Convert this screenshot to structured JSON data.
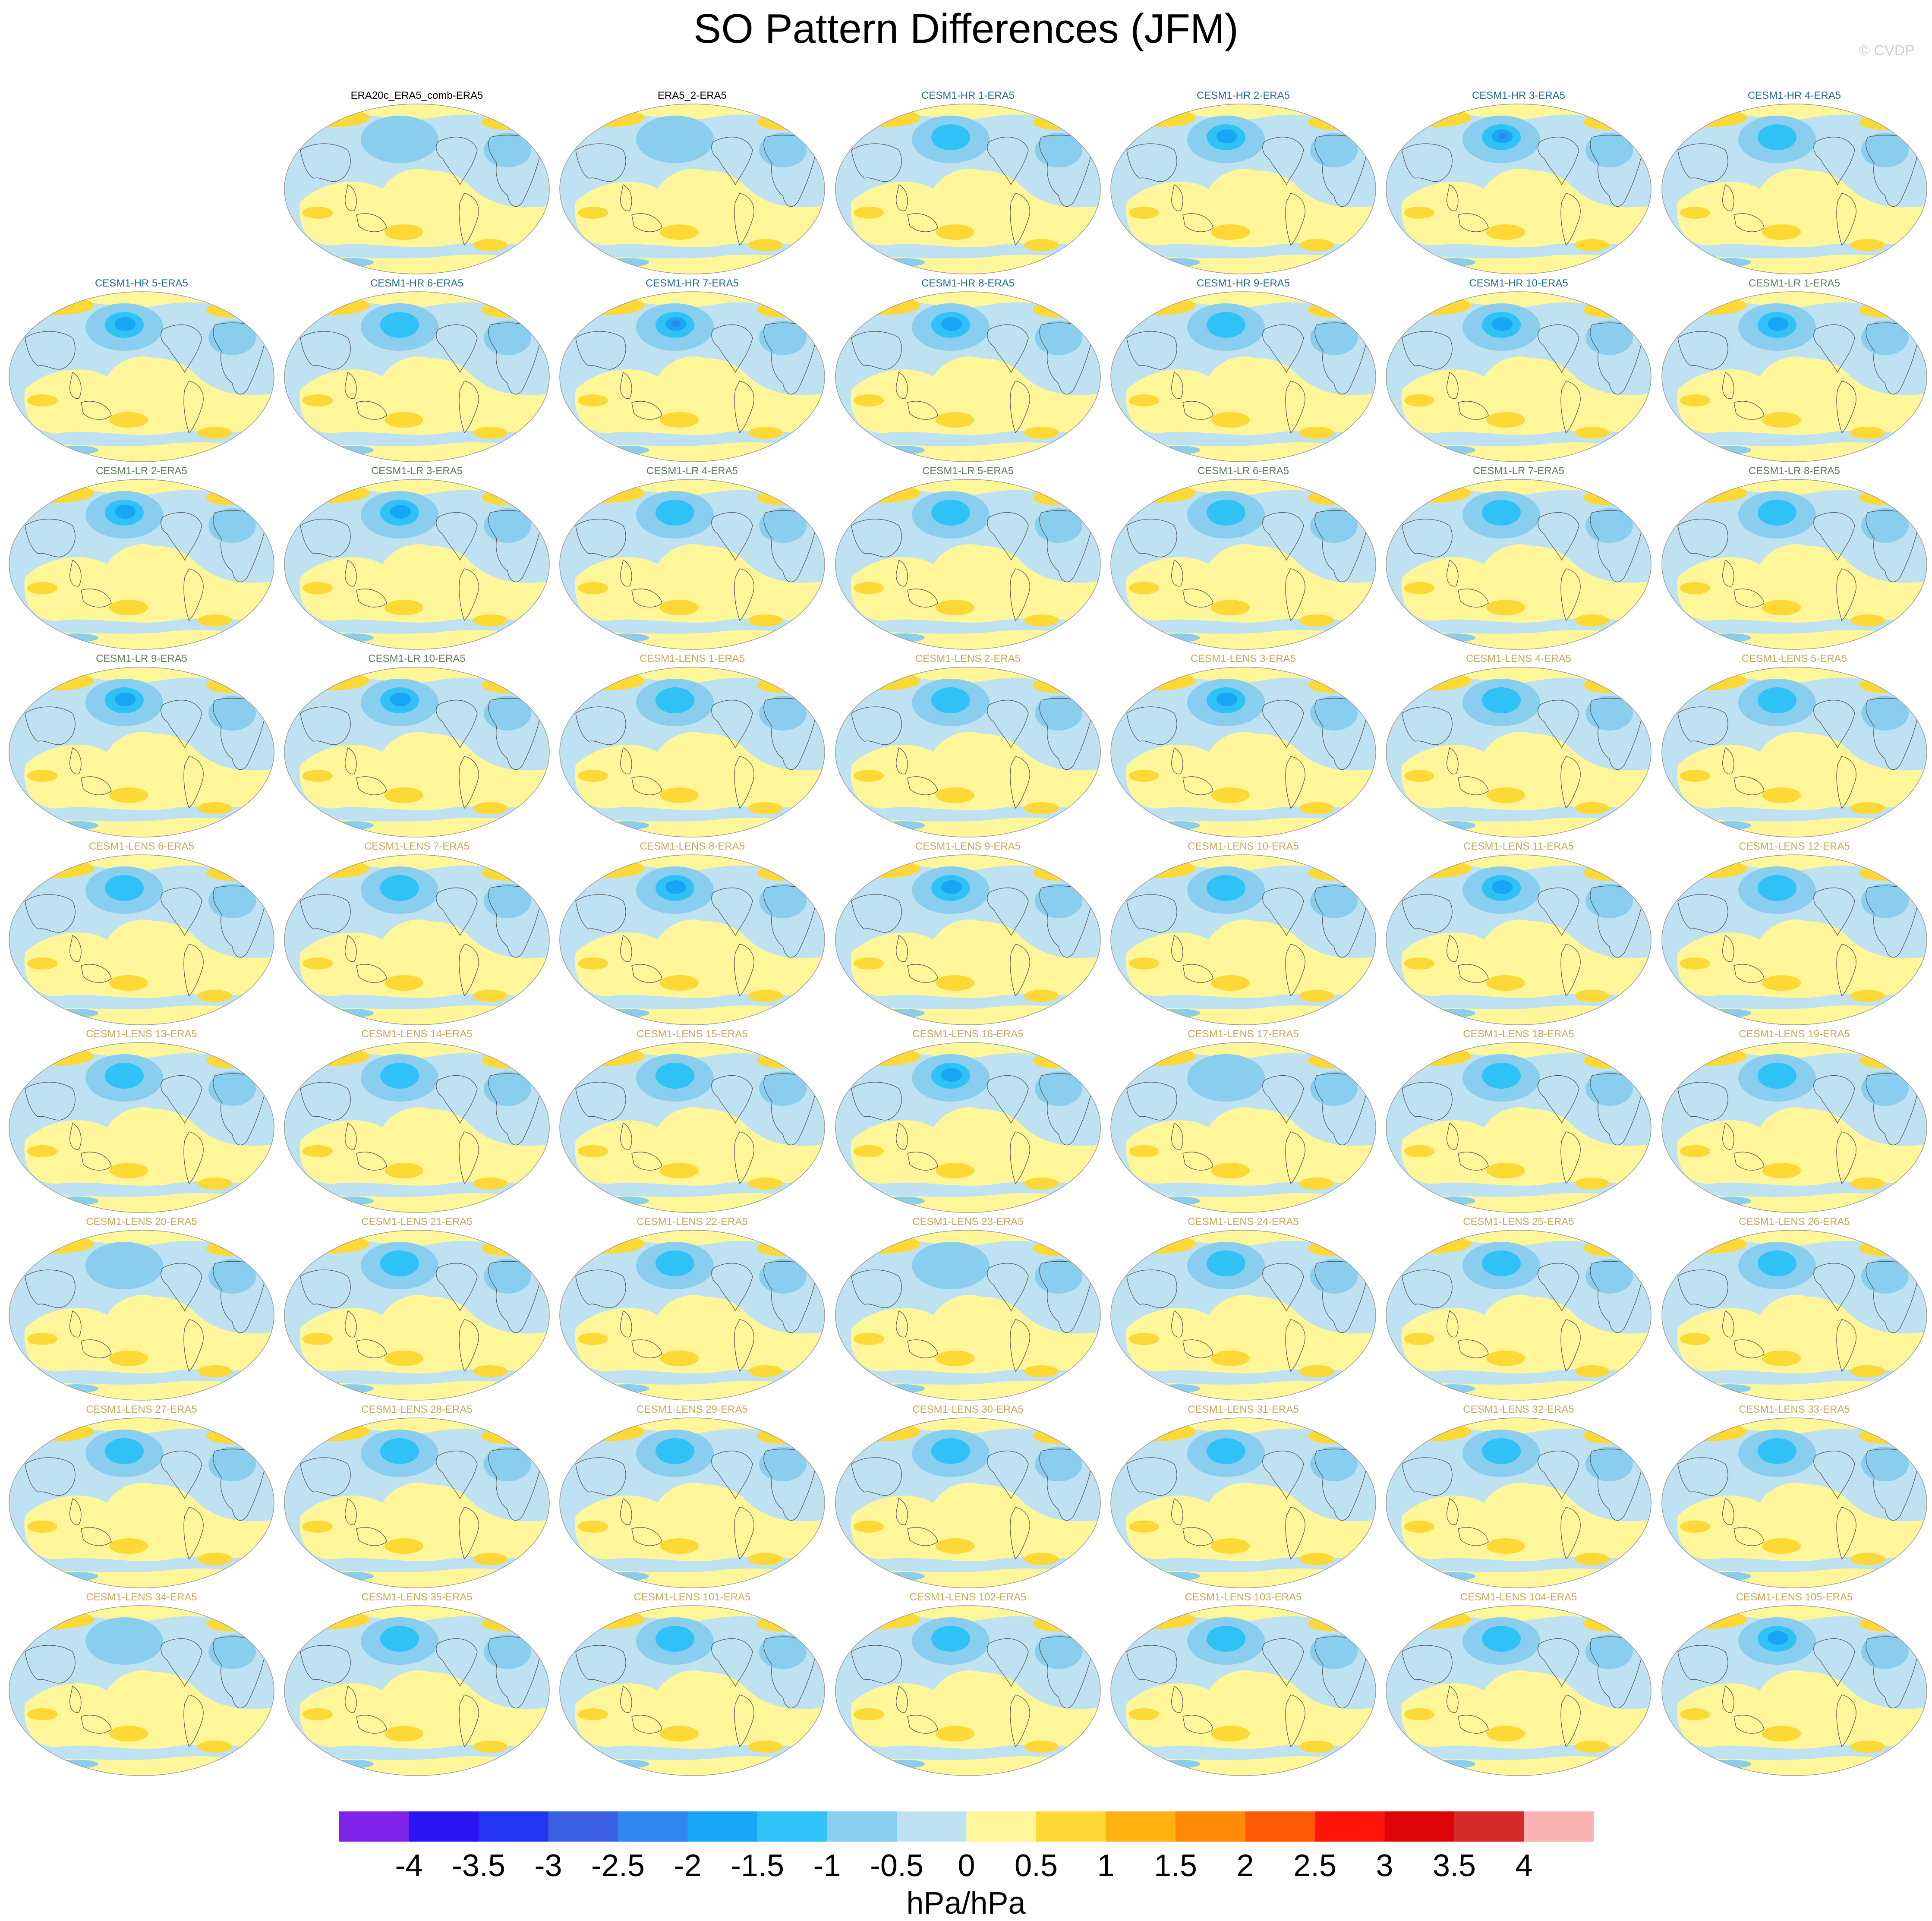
{
  "title": "SO Pattern Differences (JFM)",
  "credit": "© CVDP",
  "title_colors": {
    "reference": "#000000",
    "CESM1-HR": "#1f6f8b",
    "CESM1-LR": "#5f7f5f",
    "CESM1-LENS": "#c9a85a"
  },
  "map_colors": {
    "ocean_edge": "#9a9a9a",
    "coast": "#555555"
  },
  "panels": [
    {
      "label": "ERA20c_ERA5_comb-ERA5",
      "group": "reference",
      "row": 0,
      "col": 1,
      "blue_strength": 0.2,
      "red_strength": 0.1
    },
    {
      "label": "ERA5_2-ERA5",
      "group": "reference",
      "row": 0,
      "col": 2,
      "blue_strength": 0.2,
      "red_strength": 0.1
    },
    {
      "label": "CESM1-HR 1-ERA5",
      "group": "CESM1-HR",
      "row": 0,
      "col": 3,
      "blue_strength": 0.5,
      "red_strength": 0.5
    },
    {
      "label": "CESM1-HR 2-ERA5",
      "group": "CESM1-HR",
      "row": 0,
      "col": 4,
      "blue_strength": 0.7,
      "red_strength": 0.5
    },
    {
      "label": "CESM1-HR 3-ERA5",
      "group": "CESM1-HR",
      "row": 0,
      "col": 5,
      "blue_strength": 0.9,
      "red_strength": 0.6
    },
    {
      "label": "CESM1-HR 4-ERA5",
      "group": "CESM1-HR",
      "row": 0,
      "col": 6,
      "blue_strength": 0.6,
      "red_strength": 0.7
    },
    {
      "label": "CESM1-HR 5-ERA5",
      "group": "CESM1-HR",
      "row": 1,
      "col": 0,
      "blue_strength": 0.7,
      "red_strength": 0.5
    },
    {
      "label": "CESM1-HR 6-ERA5",
      "group": "CESM1-HR",
      "row": 1,
      "col": 1,
      "blue_strength": 0.6,
      "red_strength": 0.5
    },
    {
      "label": "CESM1-HR 7-ERA5",
      "group": "CESM1-HR",
      "row": 1,
      "col": 2,
      "blue_strength": 0.9,
      "red_strength": 0.7
    },
    {
      "label": "CESM1-HR 8-ERA5",
      "group": "CESM1-HR",
      "row": 1,
      "col": 3,
      "blue_strength": 0.7,
      "red_strength": 0.8
    },
    {
      "label": "CESM1-HR 9-ERA5",
      "group": "CESM1-HR",
      "row": 1,
      "col": 4,
      "blue_strength": 0.6,
      "red_strength": 0.3
    },
    {
      "label": "CESM1-HR 10-ERA5",
      "group": "CESM1-HR",
      "row": 1,
      "col": 5,
      "blue_strength": 0.7,
      "red_strength": 0.5
    },
    {
      "label": "CESM1-LR 1-ERA5",
      "group": "CESM1-LR",
      "row": 1,
      "col": 6,
      "blue_strength": 0.8,
      "red_strength": 0.6
    },
    {
      "label": "CESM1-LR 2-ERA5",
      "group": "CESM1-LR",
      "row": 2,
      "col": 0,
      "blue_strength": 0.7,
      "red_strength": 0.6
    },
    {
      "label": "CESM1-LR 3-ERA5",
      "group": "CESM1-LR",
      "row": 2,
      "col": 1,
      "blue_strength": 0.7,
      "red_strength": 0.6
    },
    {
      "label": "CESM1-LR 4-ERA5",
      "group": "CESM1-LR",
      "row": 2,
      "col": 2,
      "blue_strength": 0.6,
      "red_strength": 0.5
    },
    {
      "label": "CESM1-LR 5-ERA5",
      "group": "CESM1-LR",
      "row": 2,
      "col": 3,
      "blue_strength": 0.6,
      "red_strength": 0.5
    },
    {
      "label": "CESM1-LR 6-ERA5",
      "group": "CESM1-LR",
      "row": 2,
      "col": 4,
      "blue_strength": 0.5,
      "red_strength": 0.6
    },
    {
      "label": "CESM1-LR 7-ERA5",
      "group": "CESM1-LR",
      "row": 2,
      "col": 5,
      "blue_strength": 0.6,
      "red_strength": 0.6
    },
    {
      "label": "CESM1-LR 8-ERA5",
      "group": "CESM1-LR",
      "row": 2,
      "col": 6,
      "blue_strength": 0.6,
      "red_strength": 0.6
    },
    {
      "label": "CESM1-LR 9-ERA5",
      "group": "CESM1-LR",
      "row": 3,
      "col": 0,
      "blue_strength": 0.8,
      "red_strength": 0.7
    },
    {
      "label": "CESM1-LR 10-ERA5",
      "group": "CESM1-LR",
      "row": 3,
      "col": 1,
      "blue_strength": 0.8,
      "red_strength": 0.6
    },
    {
      "label": "CESM1-LENS 1-ERA5",
      "group": "CESM1-LENS",
      "row": 3,
      "col": 2,
      "blue_strength": 0.6,
      "red_strength": 0.5
    },
    {
      "label": "CESM1-LENS 2-ERA5",
      "group": "CESM1-LENS",
      "row": 3,
      "col": 3,
      "blue_strength": 0.5,
      "red_strength": 0.5
    },
    {
      "label": "CESM1-LENS 3-ERA5",
      "group": "CESM1-LENS",
      "row": 3,
      "col": 4,
      "blue_strength": 0.7,
      "red_strength": 0.6
    },
    {
      "label": "CESM1-LENS 4-ERA5",
      "group": "CESM1-LENS",
      "row": 3,
      "col": 5,
      "blue_strength": 0.6,
      "red_strength": 0.5
    },
    {
      "label": "CESM1-LENS 5-ERA5",
      "group": "CESM1-LENS",
      "row": 3,
      "col": 6,
      "blue_strength": 0.5,
      "red_strength": 0.4
    },
    {
      "label": "CESM1-LENS 6-ERA5",
      "group": "CESM1-LENS",
      "row": 4,
      "col": 0,
      "blue_strength": 0.6,
      "red_strength": 0.6
    },
    {
      "label": "CESM1-LENS 7-ERA5",
      "group": "CESM1-LENS",
      "row": 4,
      "col": 1,
      "blue_strength": 0.5,
      "red_strength": 0.5
    },
    {
      "label": "CESM1-LENS 8-ERA5",
      "group": "CESM1-LENS",
      "row": 4,
      "col": 2,
      "blue_strength": 0.7,
      "red_strength": 0.7
    },
    {
      "label": "CESM1-LENS 9-ERA5",
      "group": "CESM1-LENS",
      "row": 4,
      "col": 3,
      "blue_strength": 0.8,
      "red_strength": 0.7
    },
    {
      "label": "CESM1-LENS 10-ERA5",
      "group": "CESM1-LENS",
      "row": 4,
      "col": 4,
      "blue_strength": 0.5,
      "red_strength": 0.5
    },
    {
      "label": "CESM1-LENS 11-ERA5",
      "group": "CESM1-LENS",
      "row": 4,
      "col": 5,
      "blue_strength": 0.7,
      "red_strength": 0.6
    },
    {
      "label": "CESM1-LENS 12-ERA5",
      "group": "CESM1-LENS",
      "row": 4,
      "col": 6,
      "blue_strength": 0.6,
      "red_strength": 0.6
    },
    {
      "label": "CESM1-LENS 13-ERA5",
      "group": "CESM1-LENS",
      "row": 5,
      "col": 0,
      "blue_strength": 0.5,
      "red_strength": 0.5
    },
    {
      "label": "CESM1-LENS 14-ERA5",
      "group": "CESM1-LENS",
      "row": 5,
      "col": 1,
      "blue_strength": 0.6,
      "red_strength": 0.5
    },
    {
      "label": "CESM1-LENS 15-ERA5",
      "group": "CESM1-LENS",
      "row": 5,
      "col": 2,
      "blue_strength": 0.6,
      "red_strength": 0.4
    },
    {
      "label": "CESM1-LENS 16-ERA5",
      "group": "CESM1-LENS",
      "row": 5,
      "col": 3,
      "blue_strength": 0.7,
      "red_strength": 0.8
    },
    {
      "label": "CESM1-LENS 17-ERA5",
      "group": "CESM1-LENS",
      "row": 5,
      "col": 4,
      "blue_strength": 0.4,
      "red_strength": 0.4
    },
    {
      "label": "CESM1-LENS 18-ERA5",
      "group": "CESM1-LENS",
      "row": 5,
      "col": 5,
      "blue_strength": 0.5,
      "red_strength": 0.5
    },
    {
      "label": "CESM1-LENS 19-ERA5",
      "group": "CESM1-LENS",
      "row": 5,
      "col": 6,
      "blue_strength": 0.5,
      "red_strength": 0.5
    },
    {
      "label": "CESM1-LENS 20-ERA5",
      "group": "CESM1-LENS",
      "row": 6,
      "col": 0,
      "blue_strength": 0.4,
      "red_strength": 0.4
    },
    {
      "label": "CESM1-LENS 21-ERA5",
      "group": "CESM1-LENS",
      "row": 6,
      "col": 1,
      "blue_strength": 0.5,
      "red_strength": 0.7
    },
    {
      "label": "CESM1-LENS 22-ERA5",
      "group": "CESM1-LENS",
      "row": 6,
      "col": 2,
      "blue_strength": 0.6,
      "red_strength": 0.7
    },
    {
      "label": "CESM1-LENS 23-ERA5",
      "group": "CESM1-LENS",
      "row": 6,
      "col": 3,
      "blue_strength": 0.4,
      "red_strength": 0.4
    },
    {
      "label": "CESM1-LENS 24-ERA5",
      "group": "CESM1-LENS",
      "row": 6,
      "col": 4,
      "blue_strength": 0.6,
      "red_strength": 0.5
    },
    {
      "label": "CESM1-LENS 25-ERA5",
      "group": "CESM1-LENS",
      "row": 6,
      "col": 5,
      "blue_strength": 0.6,
      "red_strength": 0.7
    },
    {
      "label": "CESM1-LENS 26-ERA5",
      "group": "CESM1-LENS",
      "row": 6,
      "col": 6,
      "blue_strength": 0.6,
      "red_strength": 0.5
    },
    {
      "label": "CESM1-LENS 27-ERA5",
      "group": "CESM1-LENS",
      "row": 7,
      "col": 0,
      "blue_strength": 0.5,
      "red_strength": 0.5
    },
    {
      "label": "CESM1-LENS 28-ERA5",
      "group": "CESM1-LENS",
      "row": 7,
      "col": 1,
      "blue_strength": 0.5,
      "red_strength": 0.6
    },
    {
      "label": "CESM1-LENS 29-ERA5",
      "group": "CESM1-LENS",
      "row": 7,
      "col": 2,
      "blue_strength": 0.5,
      "red_strength": 0.5
    },
    {
      "label": "CESM1-LENS 30-ERA5",
      "group": "CESM1-LENS",
      "row": 7,
      "col": 3,
      "blue_strength": 0.6,
      "red_strength": 0.7
    },
    {
      "label": "CESM1-LENS 31-ERA5",
      "group": "CESM1-LENS",
      "row": 7,
      "col": 4,
      "blue_strength": 0.5,
      "red_strength": 0.5
    },
    {
      "label": "CESM1-LENS 32-ERA5",
      "group": "CESM1-LENS",
      "row": 7,
      "col": 5,
      "blue_strength": 0.6,
      "red_strength": 0.7
    },
    {
      "label": "CESM1-LENS 33-ERA5",
      "group": "CESM1-LENS",
      "row": 7,
      "col": 6,
      "blue_strength": 0.6,
      "red_strength": 0.5
    },
    {
      "label": "CESM1-LENS 34-ERA5",
      "group": "CESM1-LENS",
      "row": 8,
      "col": 0,
      "blue_strength": 0.4,
      "red_strength": 0.5
    },
    {
      "label": "CESM1-LENS 35-ERA5",
      "group": "CESM1-LENS",
      "row": 8,
      "col": 1,
      "blue_strength": 0.5,
      "red_strength": 0.5
    },
    {
      "label": "CESM1-LENS 101-ERA5",
      "group": "CESM1-LENS",
      "row": 8,
      "col": 2,
      "blue_strength": 0.6,
      "red_strength": 0.5
    },
    {
      "label": "CESM1-LENS 102-ERA5",
      "group": "CESM1-LENS",
      "row": 8,
      "col": 3,
      "blue_strength": 0.5,
      "red_strength": 0.6
    },
    {
      "label": "CESM1-LENS 103-ERA5",
      "group": "CESM1-LENS",
      "row": 8,
      "col": 4,
      "blue_strength": 0.6,
      "red_strength": 0.7
    },
    {
      "label": "CESM1-LENS 104-ERA5",
      "group": "CESM1-LENS",
      "row": 8,
      "col": 5,
      "blue_strength": 0.5,
      "red_strength": 0.5
    },
    {
      "label": "CESM1-LENS 105-ERA5",
      "group": "CESM1-LENS",
      "row": 8,
      "col": 6,
      "blue_strength": 0.7,
      "red_strength": 0.5
    }
  ],
  "chart_data": {
    "type": "heatmap",
    "title": "SO Pattern Differences (JFM)",
    "units": "hPa/hPa",
    "colorbar": {
      "ticks": [
        "-4",
        "-3.5",
        "-3",
        "-2.5",
        "-2",
        "-1.5",
        "-1",
        "-0.5",
        "0",
        "0.5",
        "1",
        "1.5",
        "2",
        "2.5",
        "3",
        "3.5",
        "4"
      ],
      "levels": [
        -4,
        -3.5,
        -3,
        -2.5,
        -2,
        -1.5,
        -1,
        -0.5,
        0,
        0.5,
        1,
        1.5,
        2,
        2.5,
        3,
        3.5,
        4
      ],
      "colors": [
        "#7f22e8",
        "#2a16f5",
        "#2335f2",
        "#3a5fe0",
        "#2f86ee",
        "#17a6f5",
        "#2fc2f7",
        "#89ceef",
        "#bfe2f2",
        "#fff69a",
        "#fed834",
        "#feb312",
        "#fe8a05",
        "#fe5a06",
        "#fc1508",
        "#dc0404",
        "#d6292a",
        "#fbb2b3"
      ]
    },
    "layout": "9 rows x 7 columns of global maps"
  }
}
